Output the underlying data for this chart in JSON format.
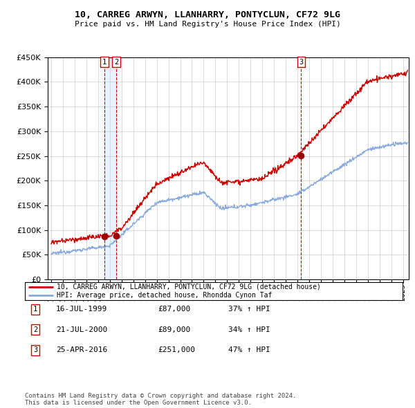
{
  "title": "10, CARREG ARWYN, LLANHARRY, PONTYCLUN, CF72 9LG",
  "subtitle": "Price paid vs. HM Land Registry's House Price Index (HPI)",
  "ylim": [
    0,
    450000
  ],
  "yticks": [
    0,
    50000,
    100000,
    150000,
    200000,
    250000,
    300000,
    350000,
    400000,
    450000
  ],
  "xlim_start": 1994.7,
  "xlim_end": 2025.5,
  "line1_color": "#cc0000",
  "line2_color": "#88aadd",
  "sale_color": "#990000",
  "vline_color": "#cc0000",
  "box_color": "#cc0000",
  "shade_color": "#ddeeff",
  "sales": [
    {
      "date": 1999.54,
      "price": 87000,
      "label": "1"
    },
    {
      "date": 2000.55,
      "price": 89000,
      "label": "2"
    },
    {
      "date": 2016.32,
      "price": 251000,
      "label": "3"
    }
  ],
  "legend_line1": "10, CARREG ARWYN, LLANHARRY, PONTYCLUN, CF72 9LG (detached house)",
  "legend_line2": "HPI: Average price, detached house, Rhondda Cynon Taf",
  "table_rows": [
    [
      "1",
      "16-JUL-1999",
      "£87,000",
      "37% ↑ HPI"
    ],
    [
      "2",
      "21-JUL-2000",
      "£89,000",
      "34% ↑ HPI"
    ],
    [
      "3",
      "25-APR-2016",
      "£251,000",
      "47% ↑ HPI"
    ]
  ],
  "footer": "Contains HM Land Registry data © Crown copyright and database right 2024.\nThis data is licensed under the Open Government Licence v3.0.",
  "background_color": "#ffffff",
  "grid_color": "#cccccc"
}
